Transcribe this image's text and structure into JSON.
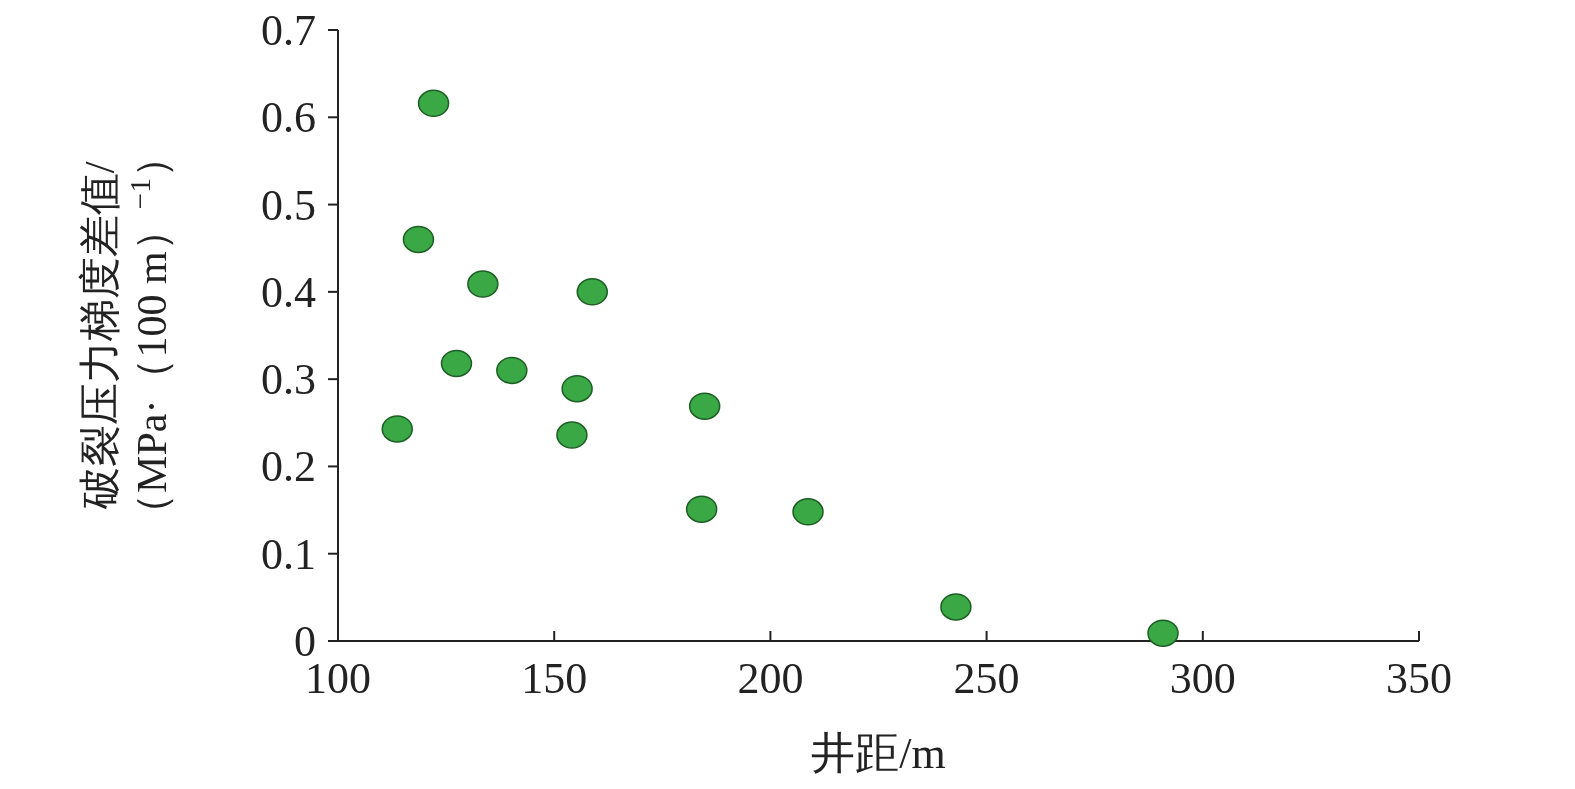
{
  "chart_data": {
    "type": "scatter",
    "xlabel": "井距/m",
    "ylabel": "破裂压力梯度差值/\n（MPa·（100 m）$^{−1}$）",
    "x": [
      113.7,
      118.6,
      122.1,
      127.4,
      133.5,
      140.2,
      154.1,
      155.3,
      158.8,
      184.1,
      184.8,
      208.7,
      242.9,
      290.8
    ],
    "series": [
      {
        "color": "#3aa845",
        "values": [
          0.243,
          0.46,
          0.616,
          0.318,
          0.409,
          0.31,
          0.236,
          0.289,
          0.4,
          0.151,
          0.269,
          0.148,
          0.039,
          0.009
        ]
      }
    ],
    "xlim": [
      100,
      350
    ],
    "ylim": [
      0,
      0.7
    ],
    "xticks": [
      100,
      150,
      200,
      250,
      300,
      350
    ],
    "yticks": [
      0,
      0.1,
      0.2,
      0.3,
      0.4,
      0.5,
      0.6,
      0.7
    ],
    "grid": false,
    "marker": "circle"
  }
}
